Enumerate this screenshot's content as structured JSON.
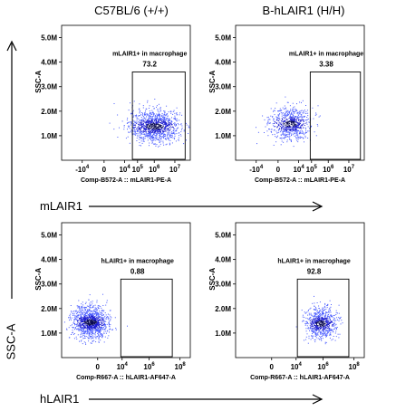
{
  "column_titles": [
    "C57BL/6 (+/+)",
    "B-hLAIR1 (H/H)"
  ],
  "row_axis_labels": [
    "mLAIR1",
    "hLAIR1"
  ],
  "y_axis_big_label": "SSC-A",
  "chart_data": [
    {
      "type": "scatter",
      "ylabel": "SSC-A",
      "xlabel": "Comp-B572-A :: mLAIR1-PE-A",
      "y_ticks": [
        "1.0M",
        "2.0M",
        "3.0M",
        "4.0M",
        "5.0M"
      ],
      "x_ticks": [
        "-10^4",
        "0",
        "10^4",
        "10^5",
        "10^6",
        "10^7"
      ],
      "gate": {
        "name": "mLAIR1+ in macrophage",
        "value": "73.2"
      },
      "population": {
        "x_center": 0.72,
        "x_spread": 0.2,
        "y_center": 1.4,
        "y_spread": 0.35,
        "n": 1100
      }
    },
    {
      "type": "scatter",
      "ylabel": "SSC-A",
      "xlabel": "Comp-B572-A :: mLAIR1-PE-A",
      "y_ticks": [
        "1.0M",
        "2.0M",
        "3.0M",
        "4.0M",
        "5.0M"
      ],
      "x_ticks": [
        "-10^4",
        "0",
        "10^4",
        "10^5",
        "10^6",
        "10^7"
      ],
      "gate": {
        "name": "mLAIR1+ in macrophage",
        "value": "3.38"
      },
      "population": {
        "x_center": 0.42,
        "x_spread": 0.16,
        "y_center": 1.5,
        "y_spread": 0.35,
        "n": 700
      }
    },
    {
      "type": "scatter",
      "ylabel": "SSC-A",
      "xlabel": "Comp-R667-A :: hLAIR1-AF647-A",
      "y_ticks": [
        "1.0M",
        "2.0M",
        "3.0M",
        "4.0M",
        "5.0M"
      ],
      "x_ticks": [
        "0",
        "10^4",
        "10^6",
        "10^8"
      ],
      "gate": {
        "name": "hLAIR1+ in macrophage",
        "value": "0.88"
      },
      "population": {
        "x_center": 0.22,
        "x_spread": 0.14,
        "y_center": 1.45,
        "y_spread": 0.35,
        "n": 1100
      }
    },
    {
      "type": "scatter",
      "ylabel": "SSC-A",
      "xlabel": "Comp-R667-A :: hLAIR1-AF647-A",
      "y_ticks": [
        "1.0M",
        "2.0M",
        "3.0M",
        "4.0M",
        "5.0M"
      ],
      "x_ticks": [
        "0",
        "10^4",
        "10^6",
        "10^8"
      ],
      "gate": {
        "name": "hLAIR1+ in macrophage",
        "value": "92.8"
      },
      "population": {
        "x_center": 0.66,
        "x_spread": 0.12,
        "y_center": 1.4,
        "y_spread": 0.35,
        "n": 700
      }
    }
  ]
}
